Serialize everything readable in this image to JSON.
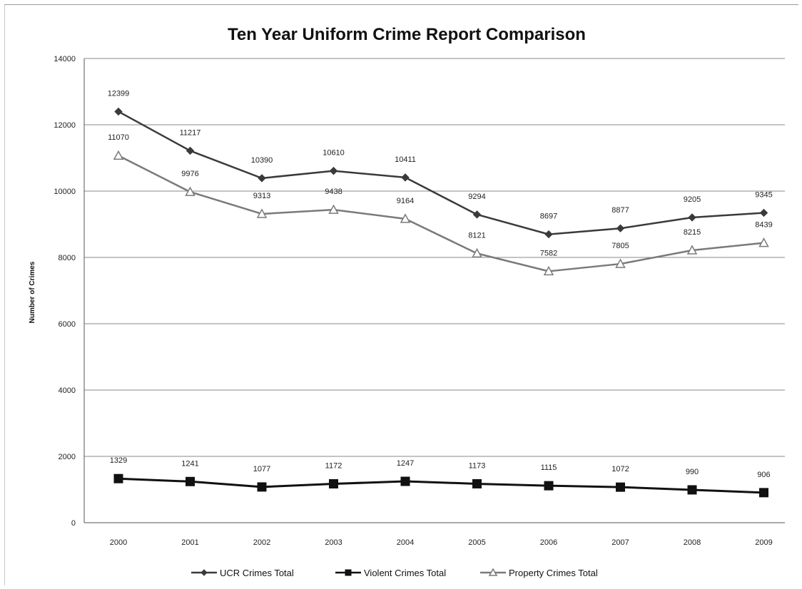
{
  "chart_data": {
    "type": "line",
    "title": "Ten Year Uniform Crime Report Comparison",
    "xlabel": "",
    "ylabel": "Number of Crimes",
    "categories": [
      "2000",
      "2001",
      "2002",
      "2003",
      "2004",
      "2005",
      "2006",
      "2007",
      "2008",
      "2009"
    ],
    "ylim": [
      0,
      14000
    ],
    "yticks": [
      "0",
      "2000",
      "4000",
      "6000",
      "8000",
      "10000",
      "12000",
      "14000"
    ],
    "grid": true,
    "legend_position": "bottom",
    "series": [
      {
        "name": "UCR Crimes Total",
        "values": [
          12399,
          11217,
          10390,
          10610,
          10411,
          9294,
          8697,
          8877,
          9205,
          9345
        ],
        "labels": [
          "12399",
          "11217",
          "10390",
          "10610",
          "10411",
          "9294",
          "8697",
          "8877",
          "9205",
          "9345"
        ],
        "color": "#3a3a3a",
        "marker": "diamond"
      },
      {
        "name": "Violent Crimes Total",
        "values": [
          1329,
          1241,
          1077,
          1172,
          1247,
          1173,
          1115,
          1072,
          990,
          906
        ],
        "labels": [
          "1329",
          "1241",
          "1077",
          "1172",
          "1247",
          "1173",
          "1115",
          "1072",
          "990",
          "906"
        ],
        "color": "#111111",
        "marker": "square"
      },
      {
        "name": "Property Crimes Total",
        "values": [
          11070,
          9976,
          9313,
          9438,
          9164,
          8121,
          7582,
          7805,
          8215,
          8439
        ],
        "labels": [
          "11070",
          "9976",
          "9313",
          "9438",
          "9164",
          "8121",
          "7582",
          "7805",
          "8215",
          "8439"
        ],
        "color": "#7a7a7a",
        "marker": "triangle"
      }
    ]
  }
}
